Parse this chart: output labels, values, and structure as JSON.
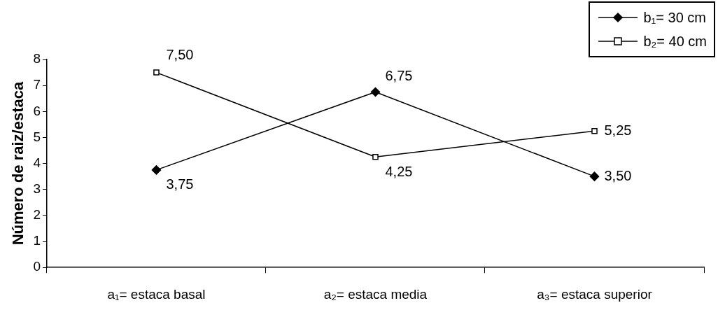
{
  "chart_data": {
    "type": "line",
    "ylabel": "Número de raiz/estaca",
    "categories": [
      "a₁= estaca basal",
      "a₂= estaca media",
      "a₃= estaca superior"
    ],
    "series": [
      {
        "name": "b₁= 30 cm",
        "color": "#000000",
        "marker": "diamond",
        "values": [
          3.75,
          6.75,
          3.5
        ],
        "value_labels": [
          "3,75",
          "6,75",
          "3,50"
        ]
      },
      {
        "name": "b₂= 40 cm",
        "color": "#000000",
        "marker": "square",
        "values": [
          7.5,
          4.25,
          5.25
        ],
        "value_labels": [
          "7,50",
          "4,25",
          "5,25"
        ]
      }
    ],
    "ylim": [
      0,
      8
    ],
    "yticks": [
      0,
      1,
      2,
      3,
      4,
      5,
      6,
      7,
      8
    ],
    "grid": false,
    "legend": "top right"
  }
}
